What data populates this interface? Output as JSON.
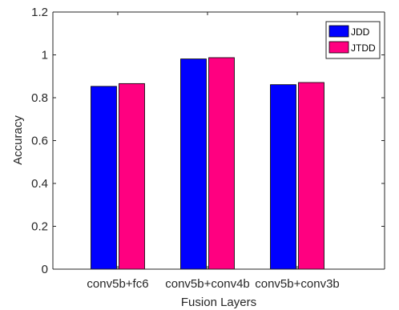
{
  "chart_data": {
    "type": "bar",
    "xlabel": "Fusion Layers",
    "ylabel": "Accuracy",
    "ylim": [
      0,
      1.2
    ],
    "yticks": [
      0,
      0.2,
      0.4,
      0.6,
      0.8,
      1,
      1.2
    ],
    "ytick_labels": [
      "0",
      "0.2",
      "0.4",
      "0.6",
      "0.8",
      "1",
      "1.2"
    ],
    "categories": [
      "conv5b+fc6",
      "conv5b+conv4b",
      "conv5b+conv3b"
    ],
    "series": [
      {
        "name": "JDD",
        "values": [
          0.853,
          0.981,
          0.861
        ],
        "color": "#0000ff"
      },
      {
        "name": "JTDD",
        "values": [
          0.866,
          0.987,
          0.871
        ],
        "color": "#ff0080"
      }
    ],
    "legend_position": "top-right",
    "grid": false
  }
}
